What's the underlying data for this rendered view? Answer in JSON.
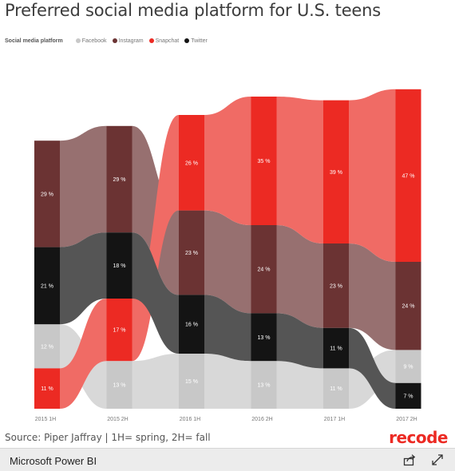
{
  "title": "Preferred social media platform for U.S. teens",
  "legend": {
    "title": "Social media platform",
    "items": [
      {
        "label": "Facebook",
        "color": "#c8c8c8"
      },
      {
        "label": "Instagram",
        "color": "#6b3333"
      },
      {
        "label": "Snapchat",
        "color": "#ec2a23"
      },
      {
        "label": "Twitter",
        "color": "#141414"
      }
    ]
  },
  "chart_data": {
    "type": "ribbon",
    "categories": [
      "2015 1H",
      "2015 2H",
      "2016 1H",
      "2016 2H",
      "2017 1H",
      "2017 2H"
    ],
    "series": [
      {
        "name": "Facebook",
        "color": "#c8c8c8",
        "ribbon_color": "#d8d8d8",
        "values": [
          12,
          13,
          15,
          13,
          11,
          9
        ]
      },
      {
        "name": "Instagram",
        "color": "#6b3333",
        "ribbon_color": "#977070",
        "values": [
          29,
          29,
          23,
          24,
          23,
          24
        ]
      },
      {
        "name": "Snapchat",
        "color": "#ec2a23",
        "ribbon_color": "#f06b65",
        "values": [
          11,
          17,
          26,
          35,
          39,
          47
        ]
      },
      {
        "name": "Twitter",
        "color": "#141414",
        "ribbon_color": "#555555",
        "values": [
          21,
          18,
          16,
          13,
          11,
          7
        ]
      }
    ],
    "value_suffix": " %",
    "xlabel": "",
    "ylabel": "",
    "grid": false
  },
  "source": "Source: Piper Jaffray | 1H= spring, 2H= fall",
  "brand": "recode",
  "footer": {
    "label": "Microsoft Power BI",
    "share_icon": "share-icon",
    "expand_icon": "expand-icon"
  }
}
